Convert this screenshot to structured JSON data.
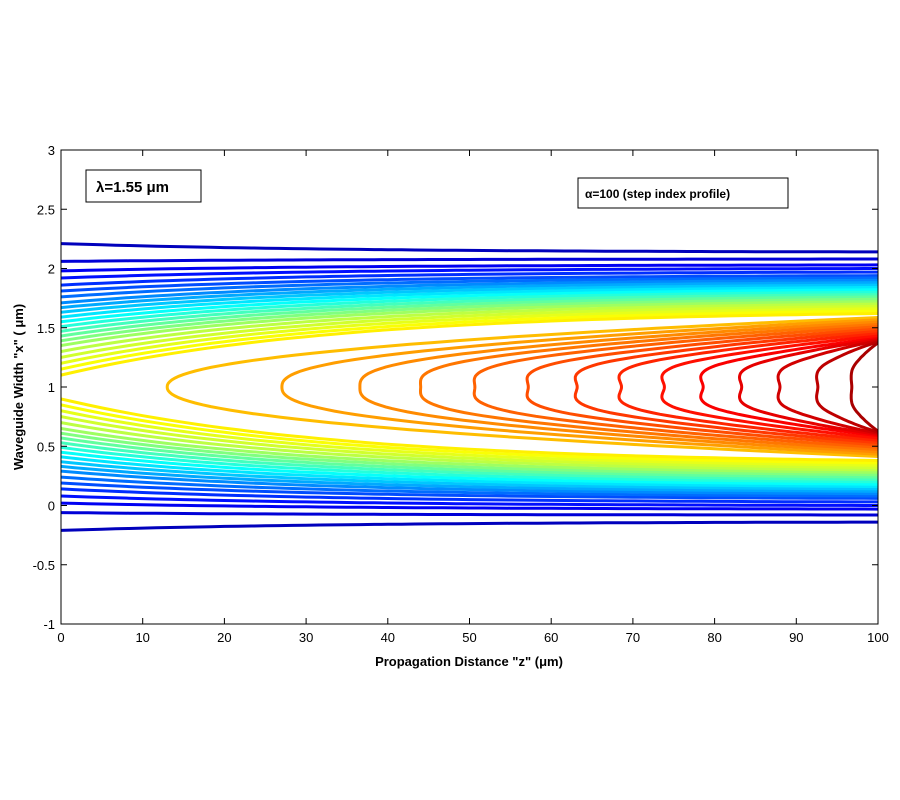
{
  "chart_data": {
    "type": "contour",
    "xlabel": "Propagation Distance \"z\" (μm)",
    "ylabel": "Waveguide Width \"x\" ( μm)",
    "xlim": [
      0,
      100
    ],
    "ylim": [
      -1,
      3
    ],
    "x_ticks": [
      "0",
      "10",
      "20",
      "30",
      "40",
      "50",
      "60",
      "70",
      "80",
      "90",
      "100"
    ],
    "y_ticks": [
      "-1",
      "-0.5",
      "0",
      "0.5",
      "1",
      "1.5",
      "2",
      "2.5",
      "3"
    ],
    "grid": false,
    "colormap": [
      "#00008f",
      "#0000ff",
      "#0080ff",
      "#00ffff",
      "#80ff80",
      "#ffff00",
      "#ff8000",
      "#ff0000",
      "#800000"
    ],
    "waveguide_center_x": 1,
    "annotations": [
      {
        "id": "wavelength",
        "text": "λ=1.55 μm"
      },
      {
        "id": "profile",
        "text": "α=100 (step index profile)"
      }
    ],
    "outer_contours": [
      {
        "level": 0.05,
        "x_offset_start": 1.21,
        "x_offset_end": 1.14
      },
      {
        "level": 0.08,
        "x_offset_start": 1.06,
        "x_offset_end": 1.08
      },
      {
        "level": 0.11,
        "x_offset_start": 0.98,
        "x_offset_end": 1.03
      },
      {
        "level": 0.14,
        "x_offset_start": 0.92,
        "x_offset_end": 1.0
      },
      {
        "level": 0.17,
        "x_offset_start": 0.86,
        "x_offset_end": 0.97
      },
      {
        "level": 0.2,
        "x_offset_start": 0.81,
        "x_offset_end": 0.94
      },
      {
        "level": 0.23,
        "x_offset_start": 0.76,
        "x_offset_end": 0.92
      },
      {
        "level": 0.26,
        "x_offset_start": 0.71,
        "x_offset_end": 0.9
      },
      {
        "level": 0.29,
        "x_offset_start": 0.67,
        "x_offset_end": 0.88
      },
      {
        "level": 0.32,
        "x_offset_start": 0.63,
        "x_offset_end": 0.86
      },
      {
        "level": 0.35,
        "x_offset_start": 0.59,
        "x_offset_end": 0.84
      },
      {
        "level": 0.38,
        "x_offset_start": 0.55,
        "x_offset_end": 0.82
      },
      {
        "level": 0.41,
        "x_offset_start": 0.51,
        "x_offset_end": 0.8
      },
      {
        "level": 0.44,
        "x_offset_start": 0.47,
        "x_offset_end": 0.78
      },
      {
        "level": 0.47,
        "x_offset_start": 0.43,
        "x_offset_end": 0.76
      },
      {
        "level": 0.5,
        "x_offset_start": 0.39,
        "x_offset_end": 0.74
      },
      {
        "level": 0.53,
        "x_offset_start": 0.35,
        "x_offset_end": 0.72
      },
      {
        "level": 0.56,
        "x_offset_start": 0.3,
        "x_offset_end": 0.7
      },
      {
        "level": 0.58,
        "x_offset_start": 0.25,
        "x_offset_end": 0.68
      },
      {
        "level": 0.6,
        "x_offset_start": 0.2,
        "x_offset_end": 0.66
      },
      {
        "level": 0.62,
        "x_offset_start": 0.15,
        "x_offset_end": 0.64
      },
      {
        "level": 0.64,
        "x_offset_start": 0.1,
        "x_offset_end": 0.62
      }
    ],
    "inner_contours": [
      {
        "level": 0.69,
        "z_tip": 13,
        "x_offset_end": 0.6,
        "dent": 0.0
      },
      {
        "level": 0.72,
        "z_tip": 26,
        "x_offset_end": 0.58,
        "dent": 0.04
      },
      {
        "level": 0.74,
        "z_tip": 35,
        "x_offset_end": 0.56,
        "dent": 0.07
      },
      {
        "level": 0.76,
        "z_tip": 42,
        "x_offset_end": 0.54,
        "dent": 0.1
      },
      {
        "level": 0.78,
        "z_tip": 48.5,
        "x_offset_end": 0.52,
        "dent": 0.12
      },
      {
        "level": 0.8,
        "z_tip": 55,
        "x_offset_end": 0.5,
        "dent": 0.14
      },
      {
        "level": 0.82,
        "z_tip": 61,
        "x_offset_end": 0.48,
        "dent": 0.16
      },
      {
        "level": 0.84,
        "z_tip": 66.5,
        "x_offset_end": 0.46,
        "dent": 0.18
      },
      {
        "level": 0.86,
        "z_tip": 72,
        "x_offset_end": 0.44,
        "dent": 0.19
      },
      {
        "level": 0.88,
        "z_tip": 77,
        "x_offset_end": 0.42,
        "dent": 0.2
      },
      {
        "level": 0.9,
        "z_tip": 82,
        "x_offset_end": 0.41,
        "dent": 0.21
      },
      {
        "level": 0.92,
        "z_tip": 87,
        "x_offset_end": 0.4,
        "dent": 0.22
      },
      {
        "level": 0.94,
        "z_tip": 92,
        "x_offset_end": 0.39,
        "dent": 0.23
      },
      {
        "level": 0.96,
        "z_tip": 96.5,
        "x_offset_end": 0.38,
        "dent": 0.24
      }
    ]
  }
}
